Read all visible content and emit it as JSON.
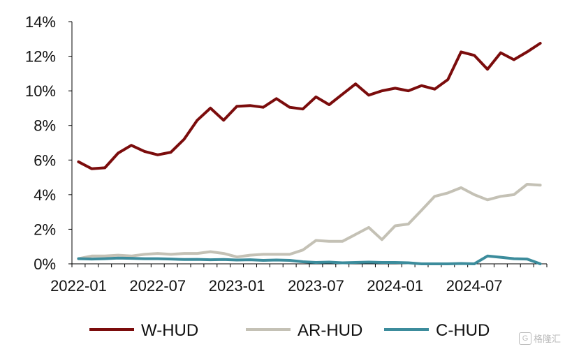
{
  "chart_data": {
    "type": "line",
    "title": "",
    "xlabel": "",
    "ylabel": "",
    "x": [
      "2022-01",
      "2022-02",
      "2022-03",
      "2022-04",
      "2022-05",
      "2022-06",
      "2022-07",
      "2022-08",
      "2022-09",
      "2022-10",
      "2022-11",
      "2022-12",
      "2023-01",
      "2023-02",
      "2023-03",
      "2023-04",
      "2023-05",
      "2023-06",
      "2023-07",
      "2023-08",
      "2023-09",
      "2023-10",
      "2023-11",
      "2023-12",
      "2024-01",
      "2024-02",
      "2024-03",
      "2024-04",
      "2024-05",
      "2024-06",
      "2024-07",
      "2024-08",
      "2024-09",
      "2024-10",
      "2024-11",
      "2024-12"
    ],
    "x_tick_labels": [
      "2022-01",
      "2022-07",
      "2023-01",
      "2023-07",
      "2024-01",
      "2024-07"
    ],
    "y_tick_labels": [
      "0%",
      "2%",
      "4%",
      "6%",
      "8%",
      "10%",
      "12%",
      "14%"
    ],
    "ylim": [
      0,
      14
    ],
    "y_unit": "%",
    "grid": false,
    "legend_position": "bottom",
    "series": [
      {
        "name": "W-HUD",
        "color": "#7b0c0c",
        "values": [
          5.9,
          5.5,
          5.55,
          6.4,
          6.85,
          6.5,
          6.3,
          6.45,
          7.2,
          8.3,
          9.0,
          8.3,
          9.1,
          9.15,
          9.05,
          9.55,
          9.05,
          8.95,
          9.65,
          9.2,
          9.8,
          10.4,
          9.75,
          10.0,
          10.15,
          10.0,
          10.3,
          10.1,
          10.65,
          12.25,
          12.05,
          11.25,
          12.2,
          11.8,
          12.25,
          12.75
        ]
      },
      {
        "name": "AR-HUD",
        "color": "#c4c1b5",
        "values": [
          0.3,
          0.45,
          0.45,
          0.5,
          0.45,
          0.55,
          0.6,
          0.55,
          0.6,
          0.6,
          0.7,
          0.6,
          0.4,
          0.5,
          0.55,
          0.55,
          0.55,
          0.8,
          1.35,
          1.3,
          1.3,
          1.7,
          2.1,
          1.4,
          2.2,
          2.3,
          3.1,
          3.9,
          4.1,
          4.4,
          4.0,
          3.7,
          3.9,
          4.0,
          4.6,
          4.55
        ]
      },
      {
        "name": "C-HUD",
        "color": "#3c8c9c",
        "values": [
          0.3,
          0.28,
          0.3,
          0.33,
          0.32,
          0.3,
          0.3,
          0.28,
          0.25,
          0.26,
          0.24,
          0.25,
          0.22,
          0.24,
          0.2,
          0.22,
          0.2,
          0.12,
          0.08,
          0.1,
          0.06,
          0.08,
          0.1,
          0.08,
          0.08,
          0.06,
          0.0,
          0.0,
          0.0,
          0.02,
          0.0,
          0.45,
          0.38,
          0.3,
          0.28,
          0.0
        ]
      }
    ]
  },
  "watermark": {
    "logo_text": "G",
    "text": "格隆汇"
  }
}
